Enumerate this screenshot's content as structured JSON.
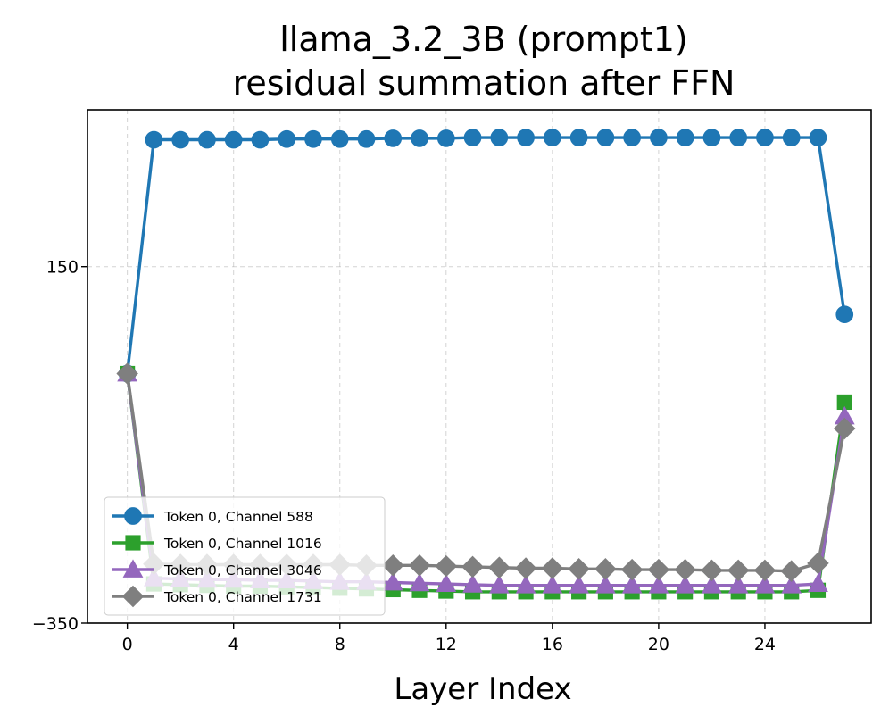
{
  "chart_data": {
    "type": "line",
    "title": [
      "llama_3.2_3B (prompt1)",
      "residual summation after FFN"
    ],
    "xlabel": "Layer Index",
    "ylabel": "",
    "xlim": [
      -1.5,
      28.0
    ],
    "ylim": [
      -350,
      370
    ],
    "xticks": [
      0,
      4,
      8,
      12,
      16,
      20,
      24
    ],
    "yticks": [
      150,
      -350
    ],
    "ytick_labels": [
      "150",
      "−350"
    ],
    "grid": true,
    "legend_position": "lower-left",
    "x": [
      0,
      1,
      2,
      3,
      4,
      5,
      6,
      7,
      8,
      9,
      10,
      11,
      12,
      13,
      14,
      15,
      16,
      17,
      18,
      19,
      20,
      21,
      22,
      23,
      24,
      25,
      26,
      27
    ],
    "series": [
      {
        "name": "Token 0, Channel 588",
        "color": "#1f77b4",
        "marker": "circle",
        "values": [
          0,
          328,
          328,
          328,
          328,
          328,
          329,
          329,
          329,
          329,
          330,
          330,
          330,
          331,
          331,
          331,
          331,
          331,
          331,
          331,
          331,
          331,
          331,
          331,
          331,
          331,
          331,
          83
        ]
      },
      {
        "name": "Token 0, Channel 1016",
        "color": "#2ca02c",
        "marker": "square",
        "values": [
          0,
          -295,
          -296,
          -297,
          -298,
          -298,
          -299,
          -300,
          -301,
          -302,
          -303,
          -304,
          -305,
          -306,
          -306,
          -306,
          -306,
          -306,
          -306,
          -306,
          -306,
          -306,
          -306,
          -306,
          -306,
          -306,
          -304,
          -40
        ]
      },
      {
        "name": "Token 0, Channel 3046",
        "color": "#9467bd",
        "marker": "triangle",
        "values": [
          0,
          -287,
          -288,
          -289,
          -289,
          -290,
          -290,
          -291,
          -292,
          -292,
          -293,
          -294,
          -295,
          -296,
          -297,
          -297,
          -297,
          -297,
          -297,
          -297,
          -297,
          -297,
          -297,
          -297,
          -297,
          -297,
          -295,
          -60
        ]
      },
      {
        "name": "Token 0, Channel 1731",
        "color": "#7f7f7f",
        "marker": "diamond",
        "values": [
          0,
          -267,
          -268,
          -268,
          -268,
          -268,
          -268,
          -268,
          -268,
          -269,
          -269,
          -269,
          -270,
          -271,
          -272,
          -273,
          -273,
          -274,
          -274,
          -275,
          -275,
          -275,
          -276,
          -276,
          -276,
          -277,
          -266,
          -77
        ]
      }
    ]
  }
}
